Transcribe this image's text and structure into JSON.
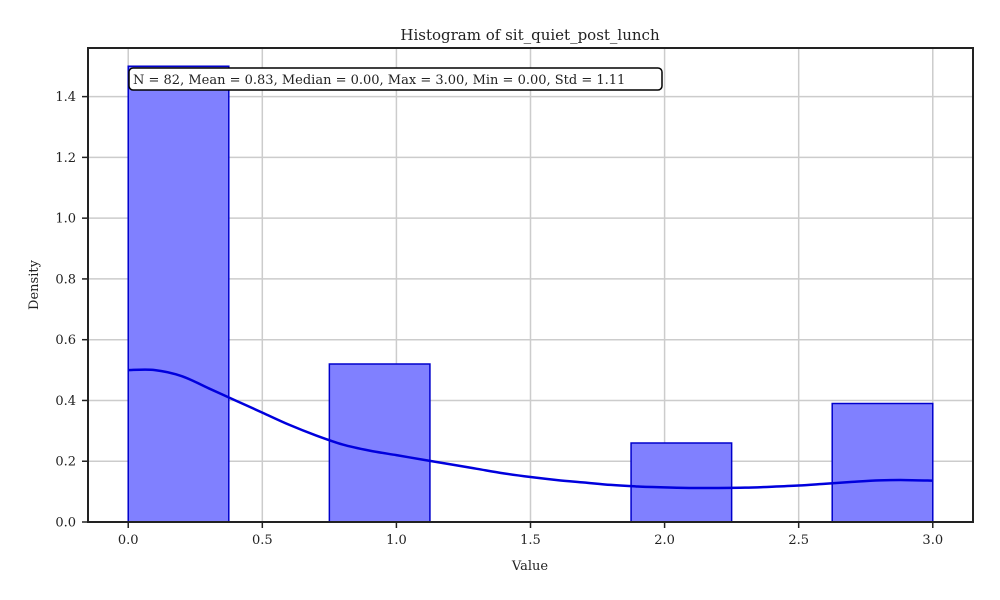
{
  "chart_data": {
    "type": "bar",
    "title": "Histogram of sit_quiet_post_lunch",
    "xlabel": "Value",
    "ylabel": "Density",
    "xlim": [
      -0.15,
      3.15
    ],
    "ylim": [
      0,
      1.56
    ],
    "x_ticks": [
      0.0,
      0.5,
      1.0,
      1.5,
      2.0,
      2.5,
      3.0
    ],
    "x_tick_labels": [
      "0.0",
      "0.5",
      "1.0",
      "1.5",
      "2.0",
      "2.5",
      "3.0"
    ],
    "y_ticks": [
      0.0,
      0.2,
      0.4,
      0.6,
      0.8,
      1.0,
      1.2,
      1.4
    ],
    "y_tick_labels": [
      "0.0",
      "0.2",
      "0.4",
      "0.6",
      "0.8",
      "1.0",
      "1.2",
      "1.4"
    ],
    "grid": true,
    "bins": [
      {
        "x0": 0.0,
        "x1": 0.375,
        "density": 1.5
      },
      {
        "x0": 0.75,
        "x1": 1.125,
        "density": 0.52
      },
      {
        "x0": 1.875,
        "x1": 2.25,
        "density": 0.26
      },
      {
        "x0": 2.625,
        "x1": 3.0,
        "density": 0.39
      }
    ],
    "kde": {
      "x": [
        0.0,
        0.1,
        0.2,
        0.3,
        0.4,
        0.5,
        0.6,
        0.7,
        0.8,
        0.9,
        1.0,
        1.1,
        1.2,
        1.3,
        1.4,
        1.5,
        1.6,
        1.7,
        1.8,
        1.9,
        2.0,
        2.1,
        2.2,
        2.3,
        2.4,
        2.5,
        2.6,
        2.7,
        2.8,
        2.9,
        3.0
      ],
      "y": [
        0.5,
        0.5,
        0.48,
        0.44,
        0.4,
        0.36,
        0.32,
        0.285,
        0.255,
        0.235,
        0.22,
        0.205,
        0.19,
        0.175,
        0.16,
        0.148,
        0.138,
        0.13,
        0.122,
        0.117,
        0.114,
        0.112,
        0.112,
        0.113,
        0.116,
        0.12,
        0.126,
        0.132,
        0.137,
        0.138,
        0.136
      ],
      "color": "#0000dd"
    },
    "bar_color": "#8080ff",
    "bar_edge_color": "#0000cc",
    "stats_text": "N = 82, Mean = 0.83, Median = 0.00, Max = 3.00, Min = 0.00, Std = 1.11"
  }
}
